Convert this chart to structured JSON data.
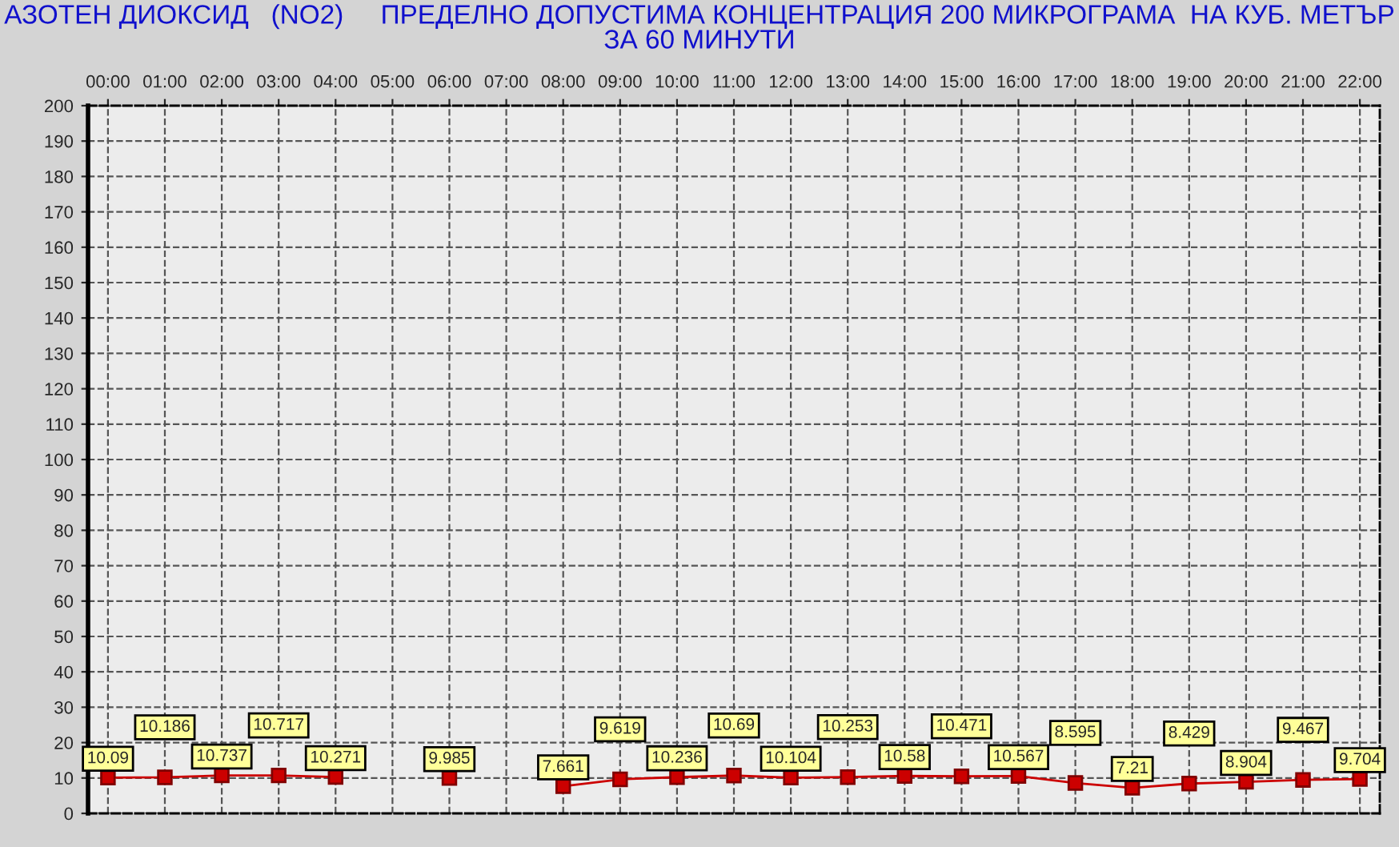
{
  "chart_data": {
    "type": "line",
    "title": "АЗОТЕН ДИОКСИД   (NO2)     ПРЕДЕЛНО ДОПУСТИМА КОНЦЕНТРАЦИЯ 200 МИКРОГРАМА  НА КУБ. МЕТЪР\nЗА 60 МИНУТИ",
    "categories": [
      "00:00",
      "01:00",
      "02:00",
      "03:00",
      "04:00",
      "05:00",
      "06:00",
      "07:00",
      "08:00",
      "09:00",
      "10:00",
      "11:00",
      "12:00",
      "13:00",
      "14:00",
      "15:00",
      "16:00",
      "17:00",
      "18:00",
      "19:00",
      "20:00",
      "21:00",
      "22:00"
    ],
    "series": [
      {
        "color": "#cc0000",
        "values": [
          10.09,
          10.186,
          10.737,
          10.717,
          10.271,
          null,
          9.985,
          null,
          7.661,
          9.619,
          10.236,
          10.69,
          10.104,
          10.253,
          10.58,
          10.471,
          10.567,
          8.595,
          7.21,
          8.429,
          8.904,
          9.467,
          9.704
        ]
      }
    ],
    "ylim": [
      0,
      200
    ],
    "yticks": [
      0,
      10,
      20,
      30,
      40,
      50,
      60,
      70,
      80,
      90,
      100,
      110,
      120,
      130,
      140,
      150,
      160,
      170,
      180,
      190,
      200
    ],
    "grid": true,
    "marker": "square",
    "data_labels": true
  }
}
